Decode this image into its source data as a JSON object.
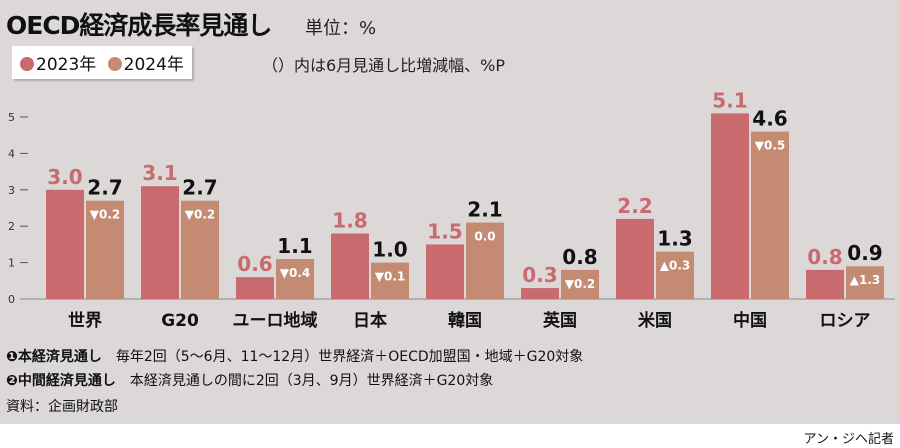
{
  "title": "OECD経済成長率見通し",
  "unit": "単位：%",
  "note": "（）内は6月見通し比増減幅、%P",
  "colors": {
    "y2023": "#c96a6e",
    "y2024": "#c48a72"
  },
  "chart_data": {
    "type": "bar",
    "categories": [
      "世界",
      "G20",
      "ユーロ地域",
      "日本",
      "韓国",
      "英国",
      "米国",
      "中国",
      "ロシア"
    ],
    "series": [
      {
        "name": "2023年",
        "values": [
          3.0,
          3.1,
          0.6,
          1.8,
          1.5,
          0.3,
          2.2,
          5.1,
          0.8
        ]
      },
      {
        "name": "2024年",
        "values": [
          2.7,
          2.7,
          1.1,
          1.0,
          2.1,
          0.8,
          1.3,
          4.6,
          0.9
        ],
        "changes": [
          "▼0.2",
          "▼0.2",
          "▼0.4",
          "▼0.1",
          "0.0",
          "▼0.2",
          "▲0.3",
          "▼0.5",
          "▲1.3"
        ]
      }
    ],
    "yticks": [
      0,
      1,
      2,
      3,
      4,
      5
    ],
    "ylim": [
      0,
      5
    ],
    "legend": "top-left"
  },
  "footnotes": [
    {
      "marker": "❶",
      "head": "本経済見通し",
      "text": "毎年2回（5～6月、11～12月）世界経済＋OECD加盟国・地域＋G20対象"
    },
    {
      "marker": "❷",
      "head": "中間経済見通し",
      "text": "本経済見通しの間に2回（3月、9月）世界経済＋G20対象"
    }
  ],
  "source": "資料：企画財政部",
  "credit": "アン・ジヘ記者"
}
